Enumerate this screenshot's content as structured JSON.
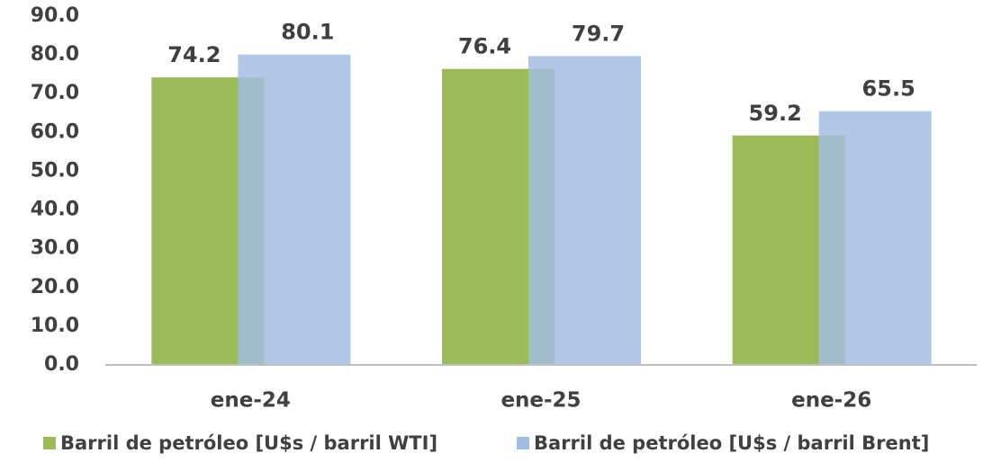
{
  "chart_data": {
    "type": "bar",
    "categories": [
      "ene-24",
      "ene-25",
      "ene-26"
    ],
    "series": [
      {
        "name": "Barril de petróleo [U$s / barril WTI]",
        "color": "#9bbb59",
        "values": [
          74.2,
          76.4,
          59.2
        ]
      },
      {
        "name": "Barril de petróleo [U$s / barril Brent]",
        "color": "#a2bde1",
        "values": [
          80.1,
          79.7,
          65.5
        ]
      }
    ],
    "ylim": [
      0,
      90
    ],
    "yticks": [
      {
        "value": 0,
        "label": "0.0"
      },
      {
        "value": 10,
        "label": "10.0"
      },
      {
        "value": 20,
        "label": "20.0"
      },
      {
        "value": 30,
        "label": "30.0"
      },
      {
        "value": 40,
        "label": "40.0"
      },
      {
        "value": 50,
        "label": "50.0"
      },
      {
        "value": 60,
        "label": "60.0"
      },
      {
        "value": 70,
        "label": "70.0"
      },
      {
        "value": 80,
        "label": "80.0"
      },
      {
        "value": 90,
        "label": "90.0"
      }
    ],
    "grid": false,
    "legend": "bottom"
  }
}
